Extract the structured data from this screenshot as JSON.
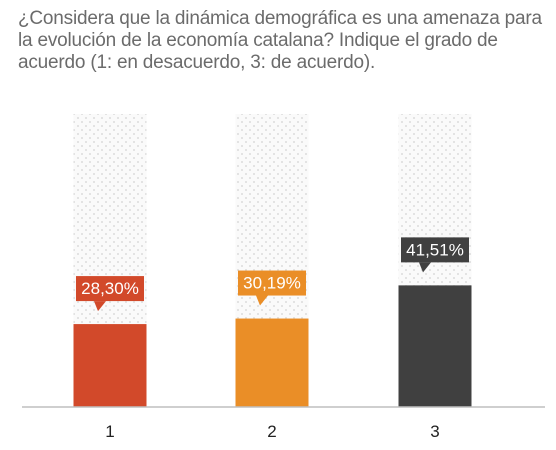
{
  "chart_data": {
    "type": "bar",
    "title": "¿Considera que la dinámica demográfica es una amenaza para la evolución de la economía catalana? Indique el grado de acuerdo (1: en desacuerdo, 3: de acuerdo).",
    "categories": [
      "1",
      "2",
      "3"
    ],
    "values": [
      28.3,
      30.19,
      41.51
    ],
    "value_labels": [
      "28,30%",
      "30,19%",
      "41,51%"
    ],
    "ylim": [
      0,
      100
    ],
    "colors": [
      "#d2492a",
      "#ea8e27",
      "#404040"
    ],
    "background_pattern_color": "#d9d9d9",
    "axis_color": "#bfbfbf",
    "tick_label_color": "#222222",
    "grid": false
  }
}
